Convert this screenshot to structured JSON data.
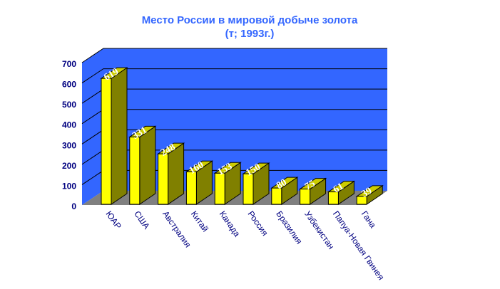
{
  "chart_data": {
    "type": "bar",
    "title_line1": "Место России в мировой добыче золота",
    "title_line2": "(т; 1993г.)",
    "categories": [
      "ЮАР",
      "США",
      "Австралия",
      "Китай",
      "Канада",
      "Россия",
      "Бразилия",
      "Узбекистан",
      "Папуа-Новая Гвинея",
      "Гана"
    ],
    "values": [
      619,
      331,
      248,
      160,
      153,
      150,
      80,
      75,
      61,
      39
    ],
    "yticks": [
      0,
      100,
      200,
      300,
      400,
      500,
      600,
      700
    ],
    "ylim": [
      0,
      700
    ],
    "grid": true,
    "three_d": true,
    "data_labels": true,
    "colors": {
      "bar_front": "#ffff00",
      "bar_side": "#808000",
      "bar_top": "#cccc00",
      "wall": "#3366ff",
      "floor": "#808080",
      "text": "#000080",
      "title": "#3366ff"
    }
  }
}
